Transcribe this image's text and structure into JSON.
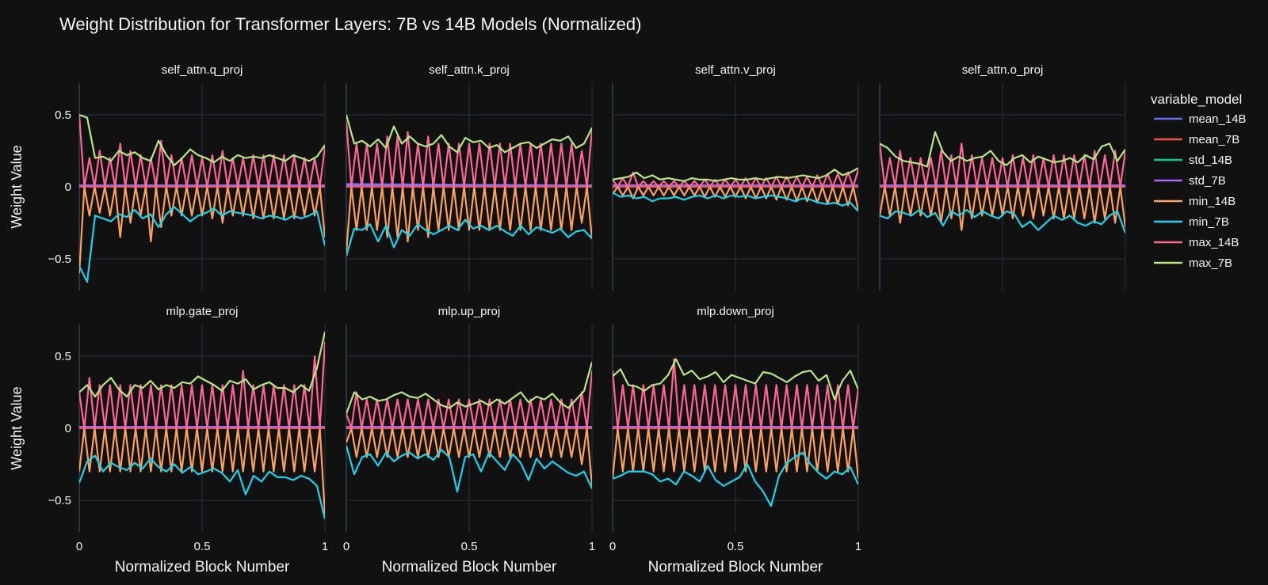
{
  "title": "Weight Distribution for Transformer Layers: 7B vs 14B Models (Normalized)",
  "legend": {
    "title": "variable_model",
    "placement": "right",
    "items": [
      {
        "name": "mean_14B",
        "color": "#636efa"
      },
      {
        "name": "mean_7B",
        "color": "#ef553b"
      },
      {
        "name": "std_14B",
        "color": "#00cc96"
      },
      {
        "name": "std_7B",
        "color": "#ab63fa"
      },
      {
        "name": "min_14B",
        "color": "#ffa15a"
      },
      {
        "name": "min_7B",
        "color": "#19d3f3"
      },
      {
        "name": "max_14B",
        "color": "#ff6692"
      },
      {
        "name": "max_7B",
        "color": "#b6e880"
      }
    ]
  },
  "colors": {
    "background": "#111111",
    "grid": "#283442",
    "text": "#f2f5fa"
  },
  "chart_data": {
    "type": "line",
    "xlabel": "Normalized Block Number",
    "ylabel": "Weight Value",
    "xlim": [
      0,
      1
    ],
    "ylim": [
      -0.72,
      0.72
    ],
    "xticks": [
      0,
      0.5,
      1
    ],
    "xtick_labels": [
      "0",
      "0.5",
      "1"
    ],
    "yticks": [
      -0.5,
      0,
      0.5
    ],
    "ytick_labels": [
      "−0.5",
      "0",
      "0.5"
    ],
    "grid": true,
    "x_7B": [
      0,
      0.0323,
      0.0645,
      0.0968,
      0.129,
      0.1613,
      0.1935,
      0.2258,
      0.2581,
      0.2903,
      0.3226,
      0.3548,
      0.3871,
      0.4194,
      0.4516,
      0.4839,
      0.5161,
      0.5484,
      0.5806,
      0.6129,
      0.6452,
      0.6774,
      0.7097,
      0.7419,
      0.7742,
      0.8065,
      0.8387,
      0.871,
      0.9032,
      0.9355,
      0.9677,
      1
    ],
    "x_14B": [
      0,
      0.0208,
      0.0417,
      0.0625,
      0.0833,
      0.1042,
      0.125,
      0.1458,
      0.1667,
      0.1875,
      0.2083,
      0.2292,
      0.25,
      0.2708,
      0.2917,
      0.3125,
      0.3333,
      0.3542,
      0.375,
      0.3958,
      0.4167,
      0.4375,
      0.4583,
      0.4792,
      0.5,
      0.5208,
      0.5417,
      0.5625,
      0.5833,
      0.6042,
      0.625,
      0.6458,
      0.6667,
      0.6875,
      0.7083,
      0.7292,
      0.75,
      0.7708,
      0.7917,
      0.8125,
      0.8333,
      0.8542,
      0.875,
      0.8958,
      0.9167,
      0.9375,
      0.9583,
      0.9792,
      1
    ],
    "panels": [
      {
        "title": "self_attn.q_proj",
        "series": {
          "mean_14B": [
            0.01,
            0.01
          ],
          "mean_7B": [
            0,
            0
          ],
          "std_14B": [
            0.01,
            0.01
          ],
          "std_7B": [
            0.01,
            0.01
          ],
          "max_7B": [
            0.5,
            0.48,
            0.2,
            0.21,
            0.18,
            0.25,
            0.22,
            0.24,
            0.2,
            0.18,
            0.32,
            0.22,
            0.15,
            0.2,
            0.26,
            0.22,
            0.2,
            0.17,
            0.21,
            0.18,
            0.22,
            0.2,
            0.21,
            0.2,
            0.22,
            0.2,
            0.18,
            0.22,
            0.2,
            0.18,
            0.21,
            0.29
          ],
          "min_7B": [
            -0.55,
            -0.66,
            -0.2,
            -0.22,
            -0.24,
            -0.19,
            -0.21,
            -0.16,
            -0.22,
            -0.19,
            -0.28,
            -0.19,
            -0.14,
            -0.19,
            -0.24,
            -0.2,
            -0.18,
            -0.15,
            -0.2,
            -0.17,
            -0.18,
            -0.19,
            -0.2,
            -0.22,
            -0.2,
            -0.21,
            -0.23,
            -0.2,
            -0.22,
            -0.2,
            -0.17,
            -0.41
          ],
          "max_14B": "alt:0.5,0.5,0.2,0.2,0.25,0.2,0.2,0.25,0.3,0.2,0.25,0.2,0.22,0.25,0.2,0.2,0.32,0.2,0.22,0.2,0.2,0.25,0.22,0.2,0.2,0.2,0.22,0.22,0.25,0.2,0.2,0.2,0.2,0.22,0.22,0.22,0.22,0.2,0.22,0.22,0.22,0.2,0.22,0.22,0.2,0.22,0.2,0.2,0.28",
          "min_14B": "alt:-0.6,-0.62,-0.2,-0.2,-0.18,-0.2,-0.2,-0.2,-0.35,-0.2,-0.25,-0.2,-0.2,-0.2,-0.38,-0.2,-0.28,-0.2,-0.2,-0.2,-0.2,-0.25,-0.2,-0.2,-0.2,-0.2,-0.22,-0.22,-0.25,-0.2,-0.2,-0.2,-0.2,-0.22,-0.22,-0.22,-0.22,-0.2,-0.22,-0.22,-0.22,-0.2,-0.22,-0.22,-0.2,-0.22,-0.2,-0.2,-0.35"
        }
      },
      {
        "title": "self_attn.k_proj",
        "series": {
          "mean_14B": [
            0.02,
            0.01
          ],
          "mean_7B": [
            0,
            0
          ],
          "std_14B": [
            0.01,
            0.01
          ],
          "std_7B": [
            0.01,
            0.01
          ],
          "max_7B": [
            0.5,
            0.3,
            0.32,
            0.28,
            0.33,
            0.27,
            0.42,
            0.3,
            0.35,
            0.3,
            0.28,
            0.3,
            0.36,
            0.28,
            0.24,
            0.34,
            0.31,
            0.32,
            0.27,
            0.29,
            0.24,
            0.27,
            0.3,
            0.31,
            0.27,
            0.3,
            0.33,
            0.32,
            0.35,
            0.27,
            0.3,
            0.41
          ],
          "min_7B": [
            -0.48,
            -0.29,
            -0.3,
            -0.26,
            -0.38,
            -0.27,
            -0.42,
            -0.3,
            -0.34,
            -0.26,
            -0.3,
            -0.33,
            -0.3,
            -0.27,
            -0.3,
            -0.23,
            -0.29,
            -0.27,
            -0.3,
            -0.27,
            -0.31,
            -0.34,
            -0.27,
            -0.33,
            -0.28,
            -0.3,
            -0.32,
            -0.29,
            -0.35,
            -0.31,
            -0.3,
            -0.36
          ],
          "max_14B": "alt:0.45,0.35,0.3,0.4,0.3,0.43,0.3,0.3,0.35,0.3,0.35,0.3,0.38,0.3,0.3,0.3,0.35,0.3,0.3,0.3,0.3,0.3,0.3,0.3,0.3,0.3,0.3,0.3,0.3,0.3,0.3,0.3,0.3,0.3,0.3,0.3,0.3,0.3,0.3,0.3,0.3,0.3,0.3,0.3,0.3,0.3,0.25,0.35,0.4",
          "min_14B": "alt:-0.45,-0.35,-0.3,-0.4,-0.3,-0.43,-0.3,-0.3,-0.35,-0.3,-0.35,-0.3,-0.38,-0.3,-0.3,-0.3,-0.35,-0.3,-0.3,-0.3,-0.3,-0.3,-0.3,-0.3,-0.3,-0.3,-0.3,-0.3,-0.3,-0.3,-0.3,-0.3,-0.3,-0.3,-0.3,-0.3,-0.3,-0.3,-0.3,-0.3,-0.3,-0.3,-0.3,-0.3,-0.3,-0.3,-0.25,-0.35,-0.36"
        }
      },
      {
        "title": "self_attn.v_proj",
        "series": {
          "mean_14B": [
            0,
            0
          ],
          "mean_7B": [
            0,
            0
          ],
          "std_14B": [
            0.01,
            0.01
          ],
          "std_7B": [
            0.01,
            0.01
          ],
          "max_7B": [
            0.05,
            0.06,
            0.07,
            0.1,
            0.06,
            0.08,
            0.05,
            0.06,
            0.05,
            0.04,
            0.06,
            0.05,
            0.05,
            0.04,
            0.05,
            0.06,
            0.05,
            0.05,
            0.06,
            0.05,
            0.06,
            0.07,
            0.06,
            0.07,
            0.08,
            0.07,
            0.06,
            0.08,
            0.12,
            0.08,
            0.1,
            0.13
          ],
          "min_7B": [
            -0.04,
            -0.07,
            -0.06,
            -0.08,
            -0.07,
            -0.1,
            -0.08,
            -0.08,
            -0.07,
            -0.09,
            -0.07,
            -0.06,
            -0.08,
            -0.06,
            -0.08,
            -0.06,
            -0.07,
            -0.06,
            -0.08,
            -0.07,
            -0.06,
            -0.07,
            -0.08,
            -0.1,
            -0.08,
            -0.09,
            -0.11,
            -0.12,
            -0.11,
            -0.13,
            -0.11,
            -0.17
          ],
          "max_14B": "alt:0.05,0.05,0.06,0.05,0.1,0.05,0.04,0.06,0.04,0.05,0.04,0.05,0.04,0.05,0.04,0.04,0.04,0.05,0.05,0.05,0.05,0.05,0.05,0.05,0.05,0.05,0.06,0.06,0.06,0.06,0.06,0.06,0.07,0.07,0.07,0.07,0.07,0.07,0.07,0.08,0.08,0.08,0.09,0.09,0.09,0.1,0.1,0.12,0.12",
          "min_14B": "alt:-0.05,-0.05,-0.06,-0.05,-0.08,-0.05,-0.06,-0.06,-0.06,-0.07,-0.06,-0.07,-0.06,-0.07,-0.06,-0.06,-0.06,-0.07,-0.07,-0.07,-0.07,-0.07,-0.07,-0.07,-0.07,-0.08,-0.08,-0.08,-0.08,-0.08,-0.08,-0.09,-0.09,-0.09,-0.09,-0.09,-0.1,-0.1,-0.1,-0.11,-0.11,-0.11,-0.12,-0.12,-0.12,-0.13,-0.13,-0.15,-0.16"
        }
      },
      {
        "title": "self_attn.o_proj",
        "series": {
          "mean_14B": [
            0,
            0
          ],
          "mean_7B": [
            0,
            0
          ],
          "std_14B": [
            0.01,
            0.01
          ],
          "std_7B": [
            0.01,
            0.01
          ],
          "max_7B": [
            0.3,
            0.27,
            0.21,
            0.18,
            0.17,
            0.16,
            0.14,
            0.38,
            0.24,
            0.18,
            0.21,
            0.18,
            0.2,
            0.21,
            0.25,
            0.18,
            0.15,
            0.2,
            0.22,
            0.17,
            0.21,
            0.19,
            0.17,
            0.18,
            0.2,
            0.17,
            0.22,
            0.19,
            0.28,
            0.3,
            0.18,
            0.26
          ],
          "min_7B": [
            -0.2,
            -0.22,
            -0.17,
            -0.18,
            -0.2,
            -0.16,
            -0.21,
            -0.18,
            -0.27,
            -0.17,
            -0.2,
            -0.16,
            -0.21,
            -0.17,
            -0.2,
            -0.22,
            -0.17,
            -0.19,
            -0.28,
            -0.24,
            -0.3,
            -0.25,
            -0.2,
            -0.23,
            -0.2,
            -0.25,
            -0.27,
            -0.24,
            -0.26,
            -0.2,
            -0.17,
            -0.32
          ],
          "max_14B": "alt:0.3,0.2,0.2,0.2,0.25,0.18,0.2,0.2,0.2,0.4,0.2,0.2,0.25,0.2,0.22,0.2,0.3,0.2,0.22,0.2,0.2,0.2,0.2,0.2,0.2,0.2,0.22,0.2,0.2,0.2,0.22,0.2,0.2,0.2,0.22,0.22,0.22,0.2,0.22,0.22,0.22,0.22,0.25,0.22,0.22,0.25,0.25,0.22,0.25",
          "min_14B": "alt:-0.2,-0.2,-0.2,-0.2,-0.25,-0.18,-0.2,-0.2,-0.2,-0.3,-0.2,-0.2,-0.25,-0.2,-0.22,-0.2,-0.3,-0.2,-0.22,-0.2,-0.2,-0.2,-0.2,-0.2,-0.2,-0.2,-0.22,-0.2,-0.2,-0.2,-0.22,-0.2,-0.2,-0.2,-0.22,-0.22,-0.22,-0.2,-0.22,-0.22,-0.22,-0.22,-0.25,-0.22,-0.22,-0.25,-0.25,-0.22,-0.28"
        }
      },
      {
        "title": "mlp.gate_proj",
        "series": {
          "mean_14B": [
            0,
            0.01
          ],
          "mean_7B": [
            0,
            0
          ],
          "std_14B": [
            0.01,
            0.01
          ],
          "std_7B": [
            0.01,
            0.01
          ],
          "max_7B": [
            0.25,
            0.3,
            0.22,
            0.3,
            0.35,
            0.27,
            0.22,
            0.3,
            0.28,
            0.33,
            0.27,
            0.3,
            0.28,
            0.32,
            0.31,
            0.36,
            0.33,
            0.3,
            0.26,
            0.33,
            0.31,
            0.34,
            0.27,
            0.3,
            0.32,
            0.28,
            0.28,
            0.25,
            0.3,
            0.26,
            0.42,
            0.67
          ],
          "min_7B": [
            -0.38,
            -0.23,
            -0.19,
            -0.3,
            -0.24,
            -0.27,
            -0.29,
            -0.24,
            -0.28,
            -0.21,
            -0.27,
            -0.3,
            -0.25,
            -0.31,
            -0.27,
            -0.32,
            -0.3,
            -0.28,
            -0.31,
            -0.37,
            -0.29,
            -0.46,
            -0.33,
            -0.37,
            -0.3,
            -0.34,
            -0.34,
            -0.36,
            -0.33,
            -0.35,
            -0.4,
            -0.63
          ],
          "max_14B": "alt:0.25,0.3,0.35,0.3,0.3,0.35,0.3,0.3,0.3,0.3,0.3,0.3,0.3,0.3,0.3,0.3,0.3,0.3,0.3,0.3,0.3,0.3,0.3,0.3,0.3,0.3,0.3,0.3,0.3,0.3,0.3,0.3,0.4,0.3,0.3,0.3,0.3,0.3,0.3,0.3,0.3,0.3,0.3,0.3,0.3,0.3,0.5,0.55,0.6",
          "min_14B": "alt:-0.3,-0.3,-0.3,-0.3,-0.3,-0.3,-0.3,-0.3,-0.3,-0.3,-0.3,-0.3,-0.3,-0.3,-0.3,-0.3,-0.3,-0.3,-0.3,-0.3,-0.3,-0.3,-0.3,-0.3,-0.3,-0.3,-0.3,-0.3,-0.3,-0.3,-0.3,-0.4,-0.3,-0.3,-0.3,-0.3,-0.3,-0.3,-0.3,-0.3,-0.3,-0.3,-0.3,-0.3,-0.3,-0.3,-0.3,-0.5,-0.6"
        }
      },
      {
        "title": "mlp.up_proj",
        "series": {
          "mean_14B": [
            0,
            0
          ],
          "mean_7B": [
            0,
            0
          ],
          "std_14B": [
            0.01,
            0.01
          ],
          "std_7B": [
            0.01,
            0.01
          ],
          "max_7B": [
            0.1,
            0.25,
            0.2,
            0.22,
            0.19,
            0.2,
            0.23,
            0.25,
            0.22,
            0.21,
            0.24,
            0.2,
            0.16,
            0.14,
            0.18,
            0.15,
            0.17,
            0.19,
            0.16,
            0.2,
            0.17,
            0.21,
            0.25,
            0.18,
            0.22,
            0.2,
            0.24,
            0.18,
            0.14,
            0.2,
            0.26,
            0.46
          ],
          "min_7B": [
            -0.12,
            -0.32,
            -0.2,
            -0.18,
            -0.26,
            -0.17,
            -0.23,
            -0.19,
            -0.17,
            -0.21,
            -0.18,
            -0.22,
            -0.15,
            -0.2,
            -0.44,
            -0.2,
            -0.18,
            -0.3,
            -0.17,
            -0.23,
            -0.29,
            -0.18,
            -0.24,
            -0.36,
            -0.21,
            -0.28,
            -0.23,
            -0.27,
            -0.31,
            -0.33,
            -0.3,
            -0.42
          ],
          "max_14B": "alt:0.1,0.2,0.25,0.2,0.2,0.2,0.2,0.2,0.2,0.2,0.2,0.2,0.2,0.2,0.2,0.2,0.2,0.2,0.2,0.2,0.2,0.2,0.2,0.2,0.2,0.2,0.2,0.2,0.2,0.2,0.2,0.2,0.2,0.2,0.2,0.2,0.2,0.2,0.2,0.2,0.2,0.2,0.2,0.2,0.2,0.2,0.25,0.3,0.4",
          "min_14B": "alt:-0.1,-0.2,-0.2,-0.2,-0.2,-0.2,-0.2,-0.2,-0.2,-0.2,-0.2,-0.2,-0.2,-0.2,-0.2,-0.2,-0.2,-0.2,-0.2,-0.2,-0.2,-0.2,-0.2,-0.2,-0.2,-0.2,-0.2,-0.2,-0.2,-0.2,-0.2,-0.2,-0.2,-0.2,-0.2,-0.2,-0.2,-0.2,-0.2,-0.2,-0.2,-0.2,-0.2,-0.2,-0.2,-0.2,-0.25,-0.3,-0.4"
        }
      },
      {
        "title": "mlp.down_proj",
        "series": {
          "mean_14B": [
            0,
            0
          ],
          "mean_7B": [
            0,
            0
          ],
          "std_14B": [
            0.01,
            0.01
          ],
          "std_7B": [
            0.01,
            0.01
          ],
          "max_7B": [
            0.36,
            0.41,
            0.3,
            0.29,
            0.26,
            0.3,
            0.31,
            0.37,
            0.48,
            0.37,
            0.4,
            0.34,
            0.36,
            0.39,
            0.32,
            0.37,
            0.35,
            0.33,
            0.31,
            0.39,
            0.38,
            0.35,
            0.32,
            0.36,
            0.39,
            0.4,
            0.33,
            0.37,
            0.2,
            0.33,
            0.4,
            0.27
          ],
          "min_7B": [
            -0.35,
            -0.33,
            -0.3,
            -0.3,
            -0.3,
            -0.32,
            -0.37,
            -0.35,
            -0.39,
            -0.3,
            -0.33,
            -0.37,
            -0.26,
            -0.36,
            -0.4,
            -0.37,
            -0.34,
            -0.25,
            -0.37,
            -0.44,
            -0.54,
            -0.33,
            -0.24,
            -0.2,
            -0.17,
            -0.25,
            -0.31,
            -0.35,
            -0.3,
            -0.32,
            -0.27,
            -0.39
          ],
          "max_14B": "alt:0.4,0.3,0.3,0.3,0.3,0.3,0.3,0.3,0.3,0.3,0.3,0.3,0.48,0.3,0.3,0.3,0.3,0.3,0.3,0.3,0.3,0.3,0.3,0.3,0.3,0.3,0.3,0.3,0.3,0.3,0.3,0.3,0.3,0.3,0.3,0.3,0.3,0.3,0.3,0.3,0.3,0.3,0.3,0.3,0.3,0.3,0.3,0.3,0.28",
          "min_14B": "alt:-0.35,-0.3,-0.3,-0.42,-0.3,-0.3,-0.3,-0.3,-0.3,-0.3,-0.3,-0.3,-0.3,-0.3,-0.3,-0.3,-0.3,-0.3,-0.3,-0.3,-0.3,-0.3,-0.3,-0.3,-0.3,-0.3,-0.3,-0.3,-0.3,-0.3,-0.3,-0.52,-0.3,-0.3,-0.3,-0.3,-0.3,-0.3,-0.3,-0.3,-0.3,-0.3,-0.3,-0.3,-0.3,-0.3,-0.3,-0.3,-0.35"
        }
      }
    ]
  }
}
